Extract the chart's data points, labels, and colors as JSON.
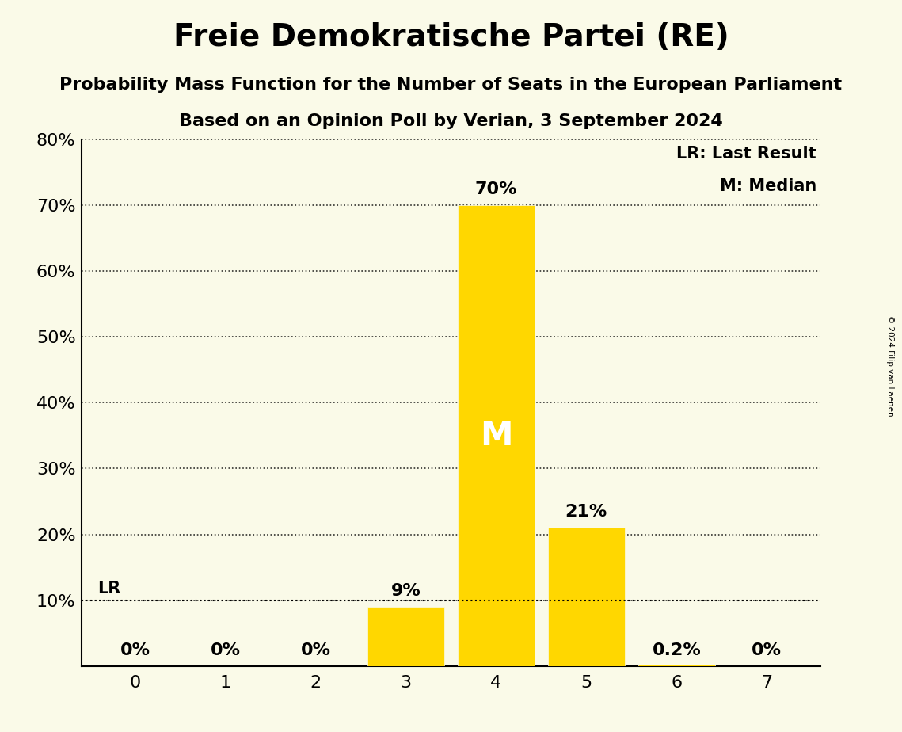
{
  "title": "Freie Demokratische Partei (RE)",
  "subtitle": "Probability Mass Function for the Number of Seats in the European Parliament",
  "subsubtitle": "Based on an Opinion Poll by Verian, 3 September 2024",
  "copyright": "© 2024 Filip van Laenen",
  "categories": [
    0,
    1,
    2,
    3,
    4,
    5,
    6,
    7
  ],
  "values": [
    0.0,
    0.0,
    0.0,
    0.09,
    0.7,
    0.21,
    0.002,
    0.0
  ],
  "bar_color": "#FFD700",
  "background_color": "#FAFAE8",
  "median": 4,
  "last_result": 0.1,
  "lr_label": "LR",
  "median_label": "M",
  "legend_lr": "LR: Last Result",
  "legend_m": "M: Median",
  "ylim": [
    0,
    0.8
  ],
  "yticks": [
    0.1,
    0.2,
    0.3,
    0.4,
    0.5,
    0.6,
    0.7,
    0.8
  ],
  "bar_labels": [
    "0%",
    "0%",
    "0%",
    "9%",
    "70%",
    "21%",
    "0.2%",
    "0%"
  ],
  "title_fontsize": 28,
  "subtitle_fontsize": 16,
  "label_fontsize": 15,
  "axis_fontsize": 16,
  "bar_label_fontsize": 16,
  "median_label_fontsize": 30
}
